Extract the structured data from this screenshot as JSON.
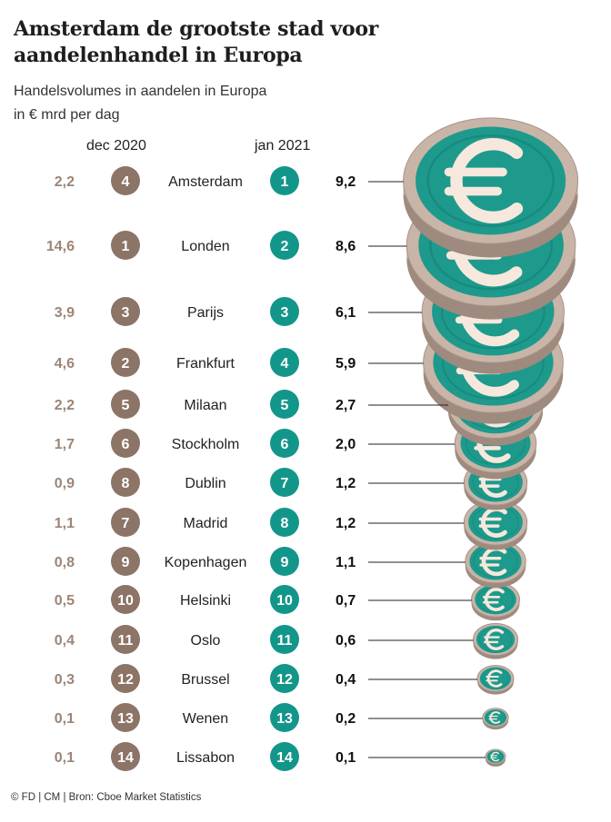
{
  "title": "Amsterdam de grootste stad voor aandelenhandel in Europa",
  "subtitle_line1": "Handelsvolumes in aandelen in Europa",
  "subtitle_line2": "in € mrd per dag",
  "column_headers": {
    "left": "dec 2020",
    "right": "jan 2021"
  },
  "source": "© FD | CM | Bron: Cboe Market Statistics",
  "colors": {
    "rank_dec_2020": "#8c7466",
    "rank_jan_2021": "#13968a",
    "value_dec_2020_text": "#9b8576",
    "coin_face": "#1d9a8c",
    "coin_edge": "#c9b4a8",
    "euro_symbol": "#f6e8dc"
  },
  "icon": "euro-coin-icon",
  "chart_data": {
    "type": "table",
    "title": "Amsterdam de grootste stad voor aandelenhandel in Europa",
    "unit": "in € mrd per dag",
    "columns": [
      "dec 2020 volume",
      "dec 2020 rank",
      "city",
      "jan 2021 rank",
      "jan 2021 volume"
    ],
    "rows": [
      {
        "city": "Amsterdam",
        "dec_2020_value": "2,2",
        "dec_2020_rank": 4,
        "jan_2021_rank": 1,
        "jan_2021_value": "9,2"
      },
      {
        "city": "Londen",
        "dec_2020_value": "14,6",
        "dec_2020_rank": 1,
        "jan_2021_rank": 2,
        "jan_2021_value": "8,6"
      },
      {
        "city": "Parijs",
        "dec_2020_value": "3,9",
        "dec_2020_rank": 3,
        "jan_2021_rank": 3,
        "jan_2021_value": "6,1"
      },
      {
        "city": "Frankfurt",
        "dec_2020_value": "4,6",
        "dec_2020_rank": 2,
        "jan_2021_rank": 4,
        "jan_2021_value": "5,9"
      },
      {
        "city": "Milaan",
        "dec_2020_value": "2,2",
        "dec_2020_rank": 5,
        "jan_2021_rank": 5,
        "jan_2021_value": "2,7"
      },
      {
        "city": "Stockholm",
        "dec_2020_value": "1,7",
        "dec_2020_rank": 6,
        "jan_2021_rank": 6,
        "jan_2021_value": "2,0"
      },
      {
        "city": "Dublin",
        "dec_2020_value": "0,9",
        "dec_2020_rank": 8,
        "jan_2021_rank": 7,
        "jan_2021_value": "1,2"
      },
      {
        "city": "Madrid",
        "dec_2020_value": "1,1",
        "dec_2020_rank": 7,
        "jan_2021_rank": 8,
        "jan_2021_value": "1,2"
      },
      {
        "city": "Kopenhagen",
        "dec_2020_value": "0,8",
        "dec_2020_rank": 9,
        "jan_2021_rank": 9,
        "jan_2021_value": "1,1"
      },
      {
        "city": "Helsinki",
        "dec_2020_value": "0,5",
        "dec_2020_rank": 10,
        "jan_2021_rank": 10,
        "jan_2021_value": "0,7"
      },
      {
        "city": "Oslo",
        "dec_2020_value": "0,4",
        "dec_2020_rank": 11,
        "jan_2021_rank": 11,
        "jan_2021_value": "0,6"
      },
      {
        "city": "Brussel",
        "dec_2020_value": "0,3",
        "dec_2020_rank": 12,
        "jan_2021_rank": 12,
        "jan_2021_value": "0,4"
      },
      {
        "city": "Wenen",
        "dec_2020_value": "0,1",
        "dec_2020_rank": 13,
        "jan_2021_rank": 13,
        "jan_2021_value": "0,2"
      },
      {
        "city": "Lissabon",
        "dec_2020_value": "0,1",
        "dec_2020_rank": 14,
        "jan_2021_rank": 14,
        "jan_2021_value": "0,1"
      }
    ]
  }
}
